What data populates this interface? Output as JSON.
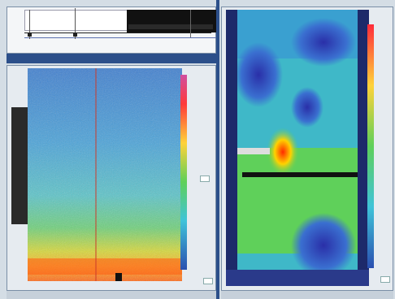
{
  "colors": {
    "frame": "#d4dde5",
    "accent": "#2c4f8a",
    "spectro_low": "#4aa3d9",
    "spectro_high": "#ff6a1a",
    "thermal_hot": "#ff2a00",
    "thermal_cold": "#2a2fa8"
  },
  "icons": {
    "timeline_cursor": "vertical-line-cursor",
    "playhead": "playhead-marker-icon",
    "zoom_left": "zoom-button-icon",
    "zoom_right": "zoom-button-icon"
  }
}
